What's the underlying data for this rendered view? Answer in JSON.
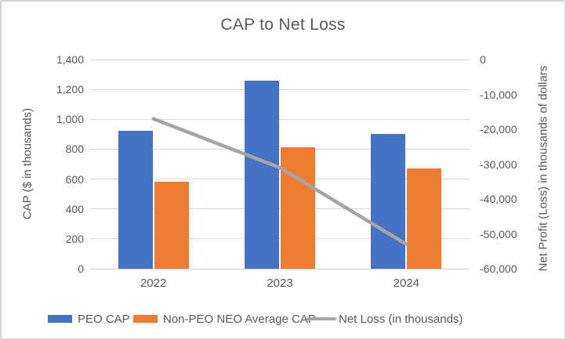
{
  "chart_data": {
    "type": "combo-bar-line",
    "title": "CAP to Net Loss",
    "categories": [
      "2022",
      "2023",
      "2024"
    ],
    "bar_series": [
      {
        "name": "PEO CAP",
        "color": "#4472C4",
        "axis": "primary",
        "values": [
          925,
          1260,
          900
        ]
      },
      {
        "name": "Non-PEO NEO Average CAP",
        "color": "#ED7D31",
        "axis": "primary",
        "values": [
          580,
          815,
          670
        ]
      }
    ],
    "line_series": {
      "name": "Net Loss (in thousands)",
      "color": "#A5A5A5",
      "axis": "secondary",
      "values": [
        -17000,
        -31000,
        -53000
      ]
    },
    "left_axis": {
      "label": "CAP ($ in thousands)",
      "min": 0,
      "max": 1400,
      "tick_step": 200,
      "ticks": [
        "0",
        "200",
        "400",
        "600",
        "800",
        "1,000",
        "1,200",
        "1,400"
      ]
    },
    "right_axis": {
      "label": "Net Profit (Loss) in thousands of dollars",
      "min": -60000,
      "max": 0,
      "tick_step": 10000,
      "ticks": [
        "0",
        "-10,000",
        "-20,000",
        "-30,000",
        "-40,000",
        "-50,000",
        "-60,000"
      ]
    },
    "legend": {
      "position": "bottom"
    },
    "grid": true,
    "colors": {
      "text": "#595959",
      "gridline": "#DADADA",
      "peo_cap": "#4472C4",
      "non_peo_cap": "#ED7D31",
      "net_loss_line": "#A5A5A5"
    }
  }
}
